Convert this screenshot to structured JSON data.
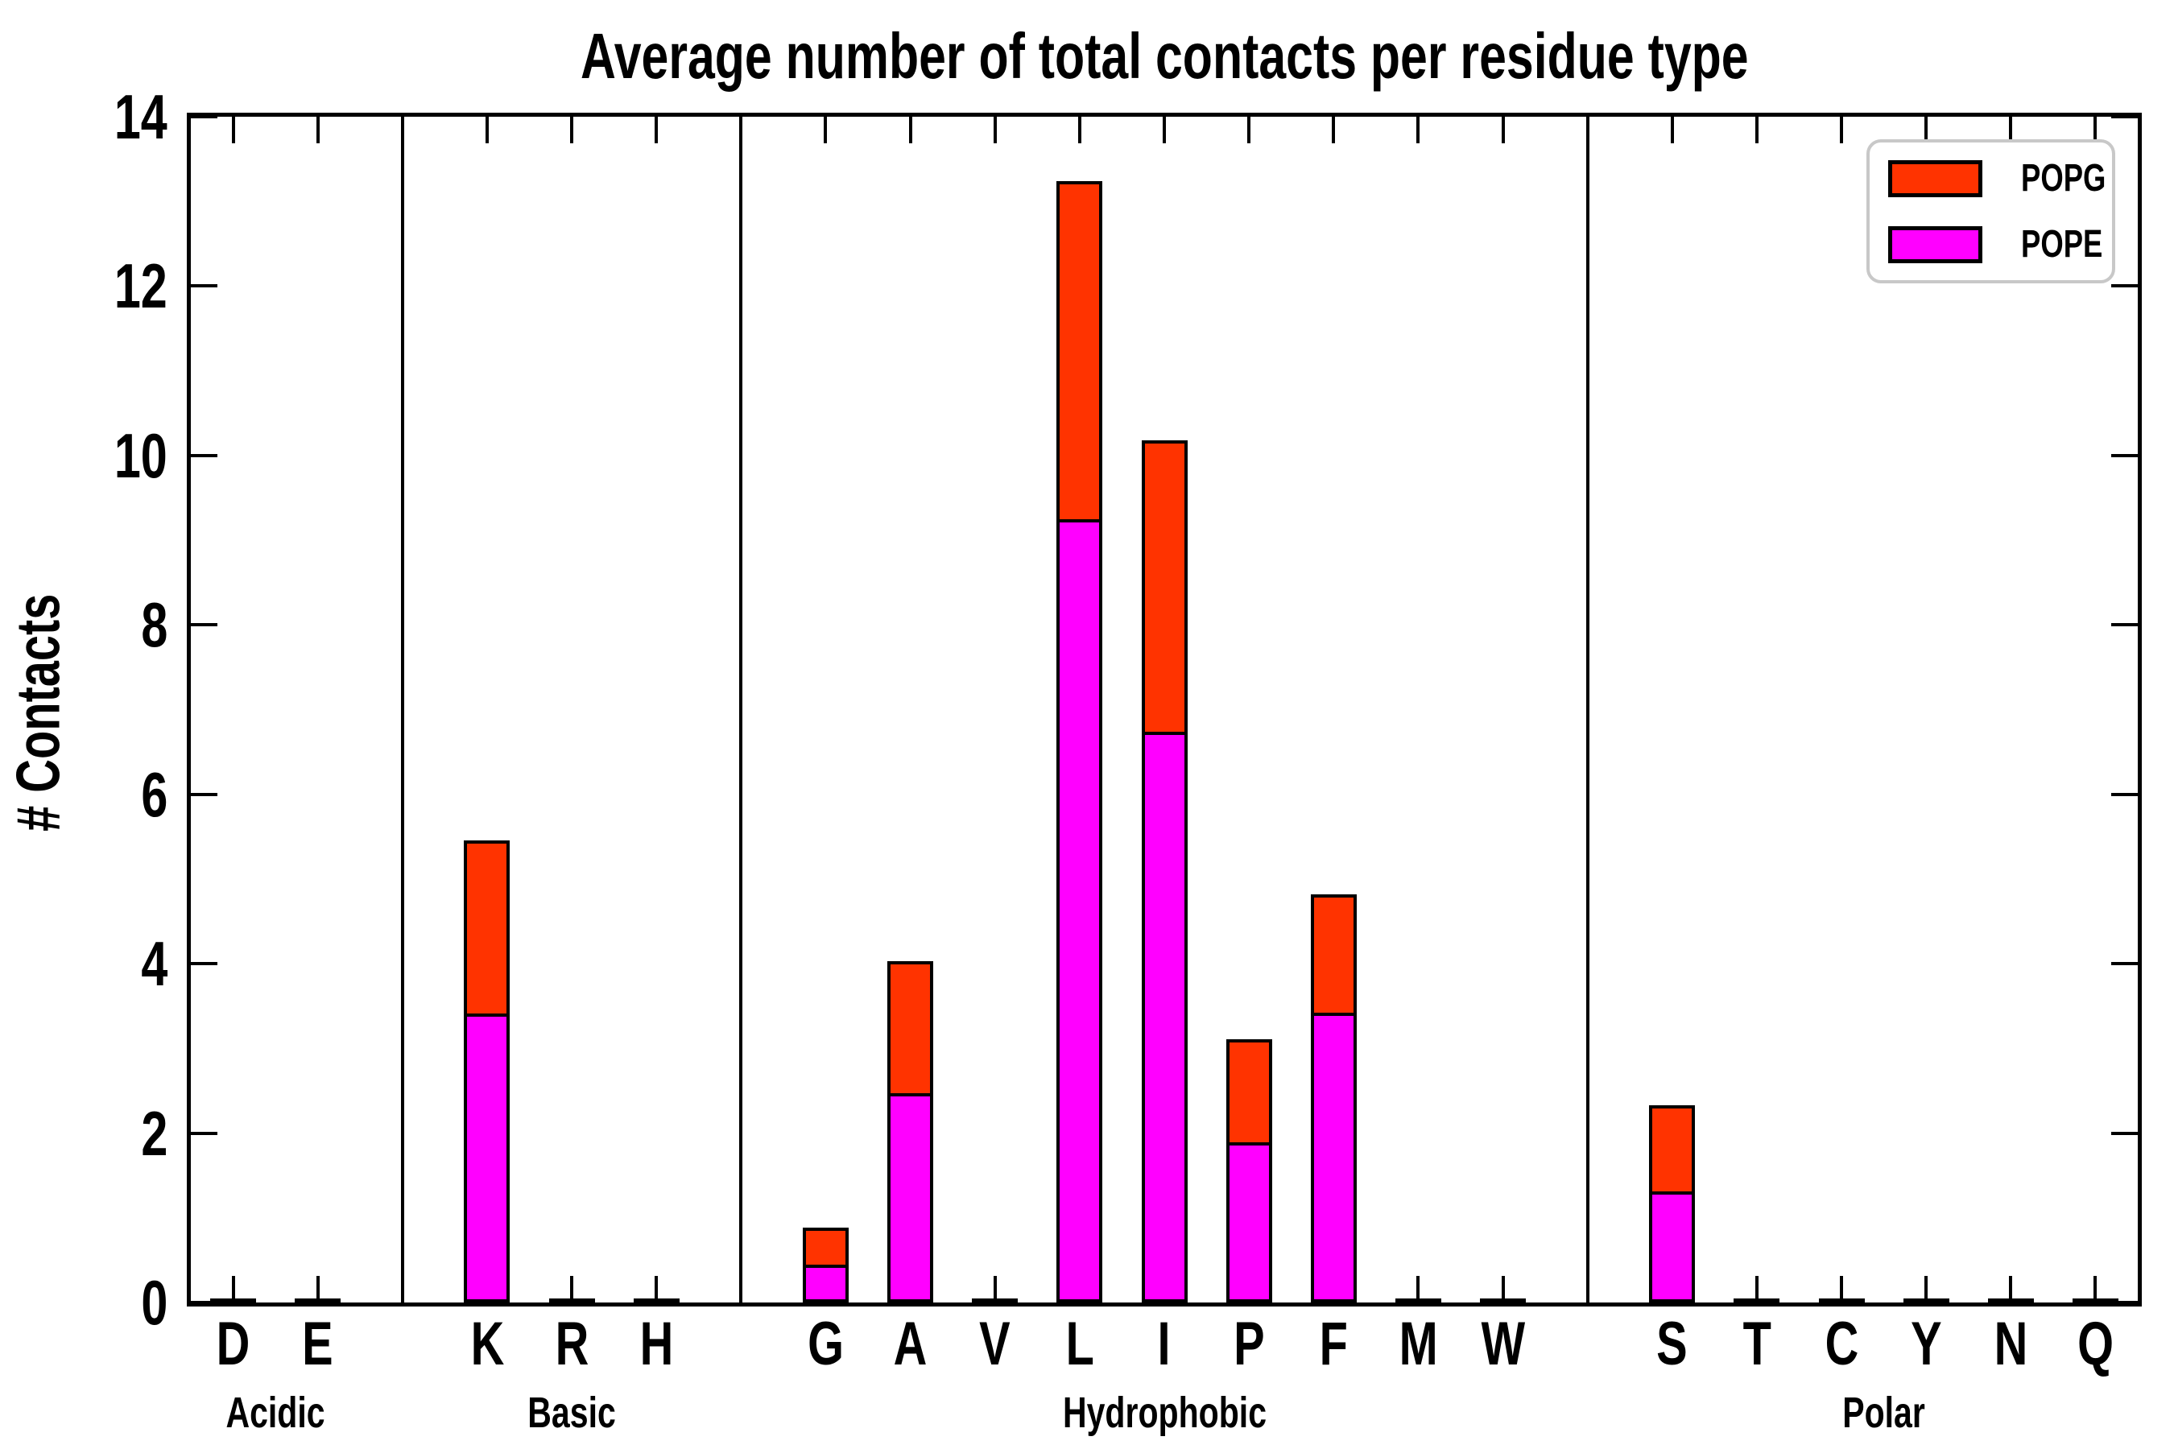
{
  "title": "Average number of total contacts per residue type",
  "ylabel": "# Contacts",
  "legend": {
    "position": "upper right",
    "items": [
      {
        "label": "POPG",
        "color": "#FF3300"
      },
      {
        "label": "POPE",
        "color": "#FF00FF"
      }
    ]
  },
  "chart_data": {
    "type": "bar",
    "stacked": true,
    "title": "Average number of total contacts per residue type",
    "xlabel": "",
    "ylabel": "# Contacts",
    "ylim": [
      0,
      14
    ],
    "yticks": [
      0,
      2,
      4,
      6,
      8,
      10,
      12,
      14
    ],
    "grid": false,
    "legend_position": "upper right",
    "groups": [
      {
        "label": "Acidic",
        "categories": [
          "D",
          "E"
        ]
      },
      {
        "label": "Basic",
        "categories": [
          "K",
          "R",
          "H"
        ]
      },
      {
        "label": "Hydrophobic",
        "categories": [
          "G",
          "A",
          "V",
          "L",
          "I",
          "P",
          "F",
          "M",
          "W"
        ]
      },
      {
        "label": "Polar",
        "categories": [
          "S",
          "T",
          "C",
          "Y",
          "N",
          "Q"
        ]
      }
    ],
    "categories": [
      "D",
      "E",
      "K",
      "R",
      "H",
      "G",
      "A",
      "V",
      "L",
      "I",
      "P",
      "F",
      "M",
      "W",
      "S",
      "T",
      "C",
      "Y",
      "N",
      "Q"
    ],
    "series": [
      {
        "name": "POPE",
        "color": "#FF00FF",
        "values": [
          0,
          0,
          3.37,
          0,
          0,
          0.41,
          2.43,
          0,
          9.21,
          6.7,
          1.85,
          3.38,
          0,
          0,
          1.27,
          0,
          0,
          0,
          0,
          0
        ]
      },
      {
        "name": "POPG",
        "color": "#FF3300",
        "values": [
          0,
          0,
          2.09,
          0,
          0,
          0.47,
          1.6,
          0,
          4.03,
          3.48,
          1.26,
          1.44,
          0,
          0,
          1.06,
          0,
          0,
          0,
          0,
          0
        ]
      }
    ],
    "totals": [
      0,
      0,
      5.46,
      0,
      0,
      0.88,
      4.03,
      0,
      13.24,
      10.18,
      3.11,
      4.82,
      0,
      0,
      2.33,
      0,
      0,
      0,
      0,
      0
    ]
  }
}
